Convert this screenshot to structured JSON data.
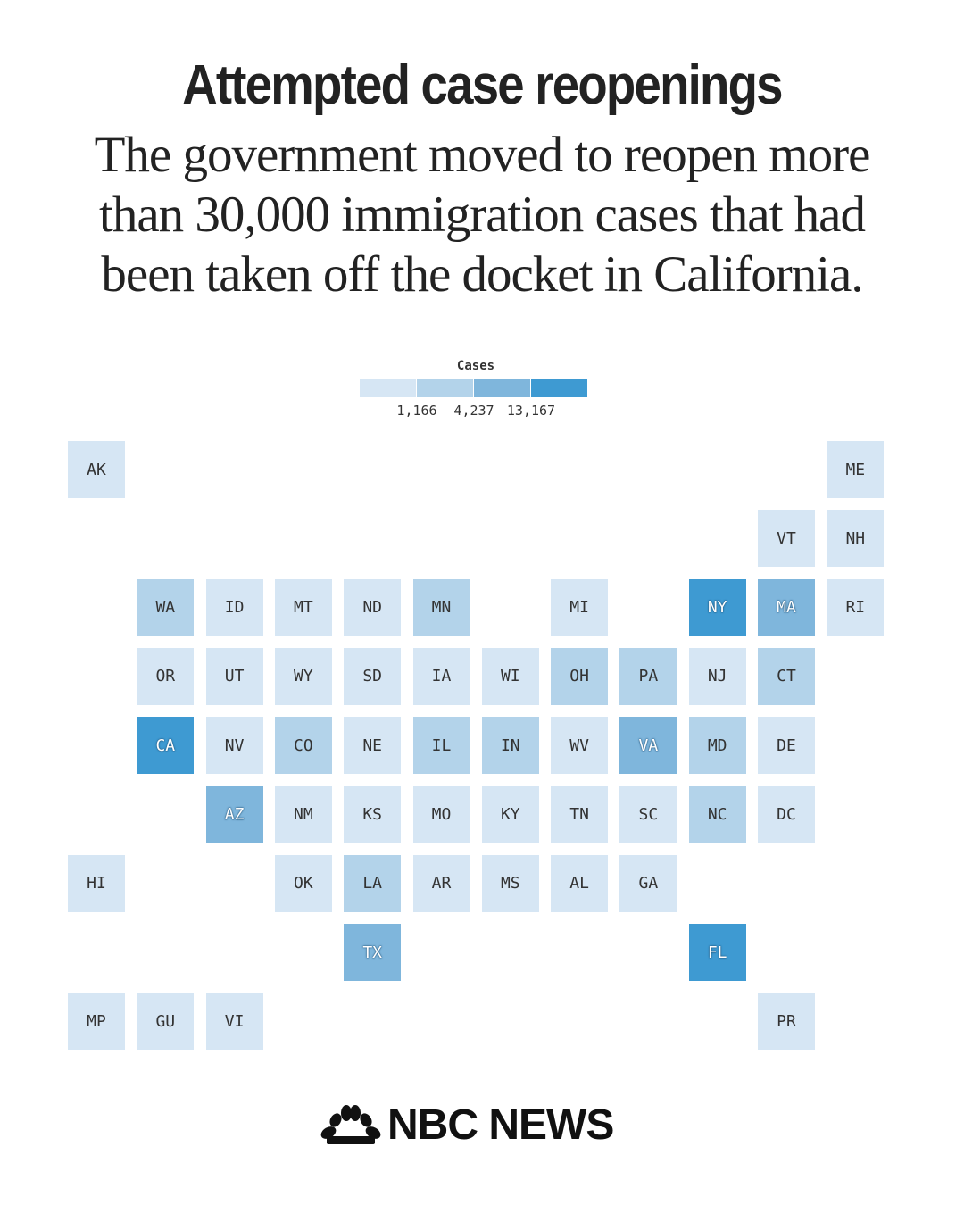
{
  "title": "Attempted case reopenings",
  "subtitle": "The government moved to reopen more than 30,000 immigration cases that had been taken off the docket in California.",
  "legend": {
    "title": "Cases",
    "labels": [
      "1,166",
      "4,237",
      "13,167"
    ],
    "colors": [
      "#d6e6f4",
      "#b3d3ea",
      "#7fb6dc",
      "#3e9ad2"
    ]
  },
  "chart_data": {
    "type": "heatmap",
    "value_field": "cases_bin",
    "bins": [
      "< 1,166",
      "1,166 – 4,237",
      "4,237 – 13,167",
      "≥ 13,167"
    ],
    "states": [
      {
        "abbr": "AK",
        "bin": 0
      },
      {
        "abbr": "ME",
        "bin": 0
      },
      {
        "abbr": "VT",
        "bin": 0
      },
      {
        "abbr": "NH",
        "bin": 0
      },
      {
        "abbr": "WA",
        "bin": 1
      },
      {
        "abbr": "ID",
        "bin": 0
      },
      {
        "abbr": "MT",
        "bin": 0
      },
      {
        "abbr": "ND",
        "bin": 0
      },
      {
        "abbr": "MN",
        "bin": 1
      },
      {
        "abbr": "MI",
        "bin": 0
      },
      {
        "abbr": "NY",
        "bin": 3
      },
      {
        "abbr": "MA",
        "bin": 2
      },
      {
        "abbr": "RI",
        "bin": 0
      },
      {
        "abbr": "OR",
        "bin": 0
      },
      {
        "abbr": "UT",
        "bin": 0
      },
      {
        "abbr": "WY",
        "bin": 0
      },
      {
        "abbr": "SD",
        "bin": 0
      },
      {
        "abbr": "IA",
        "bin": 0
      },
      {
        "abbr": "WI",
        "bin": 0
      },
      {
        "abbr": "OH",
        "bin": 1
      },
      {
        "abbr": "PA",
        "bin": 1
      },
      {
        "abbr": "NJ",
        "bin": 0
      },
      {
        "abbr": "CT",
        "bin": 1
      },
      {
        "abbr": "CA",
        "bin": 3
      },
      {
        "abbr": "NV",
        "bin": 0
      },
      {
        "abbr": "CO",
        "bin": 1
      },
      {
        "abbr": "NE",
        "bin": 0
      },
      {
        "abbr": "IL",
        "bin": 1
      },
      {
        "abbr": "IN",
        "bin": 1
      },
      {
        "abbr": "WV",
        "bin": 0
      },
      {
        "abbr": "VA",
        "bin": 2
      },
      {
        "abbr": "MD",
        "bin": 1
      },
      {
        "abbr": "DE",
        "bin": 0
      },
      {
        "abbr": "AZ",
        "bin": 2
      },
      {
        "abbr": "NM",
        "bin": 0
      },
      {
        "abbr": "KS",
        "bin": 0
      },
      {
        "abbr": "MO",
        "bin": 0
      },
      {
        "abbr": "KY",
        "bin": 0
      },
      {
        "abbr": "TN",
        "bin": 0
      },
      {
        "abbr": "SC",
        "bin": 0
      },
      {
        "abbr": "NC",
        "bin": 1
      },
      {
        "abbr": "DC",
        "bin": 0
      },
      {
        "abbr": "HI",
        "bin": 0
      },
      {
        "abbr": "OK",
        "bin": 0
      },
      {
        "abbr": "LA",
        "bin": 1
      },
      {
        "abbr": "AR",
        "bin": 0
      },
      {
        "abbr": "MS",
        "bin": 0
      },
      {
        "abbr": "AL",
        "bin": 0
      },
      {
        "abbr": "GA",
        "bin": 0
      },
      {
        "abbr": "TX",
        "bin": 2
      },
      {
        "abbr": "FL",
        "bin": 3
      },
      {
        "abbr": "MP",
        "bin": 0
      },
      {
        "abbr": "GU",
        "bin": 0
      },
      {
        "abbr": "VI",
        "bin": 0
      },
      {
        "abbr": "PR",
        "bin": 0
      }
    ]
  },
  "logo": {
    "text": "NBC NEWS",
    "icon": "peacock-icon"
  }
}
